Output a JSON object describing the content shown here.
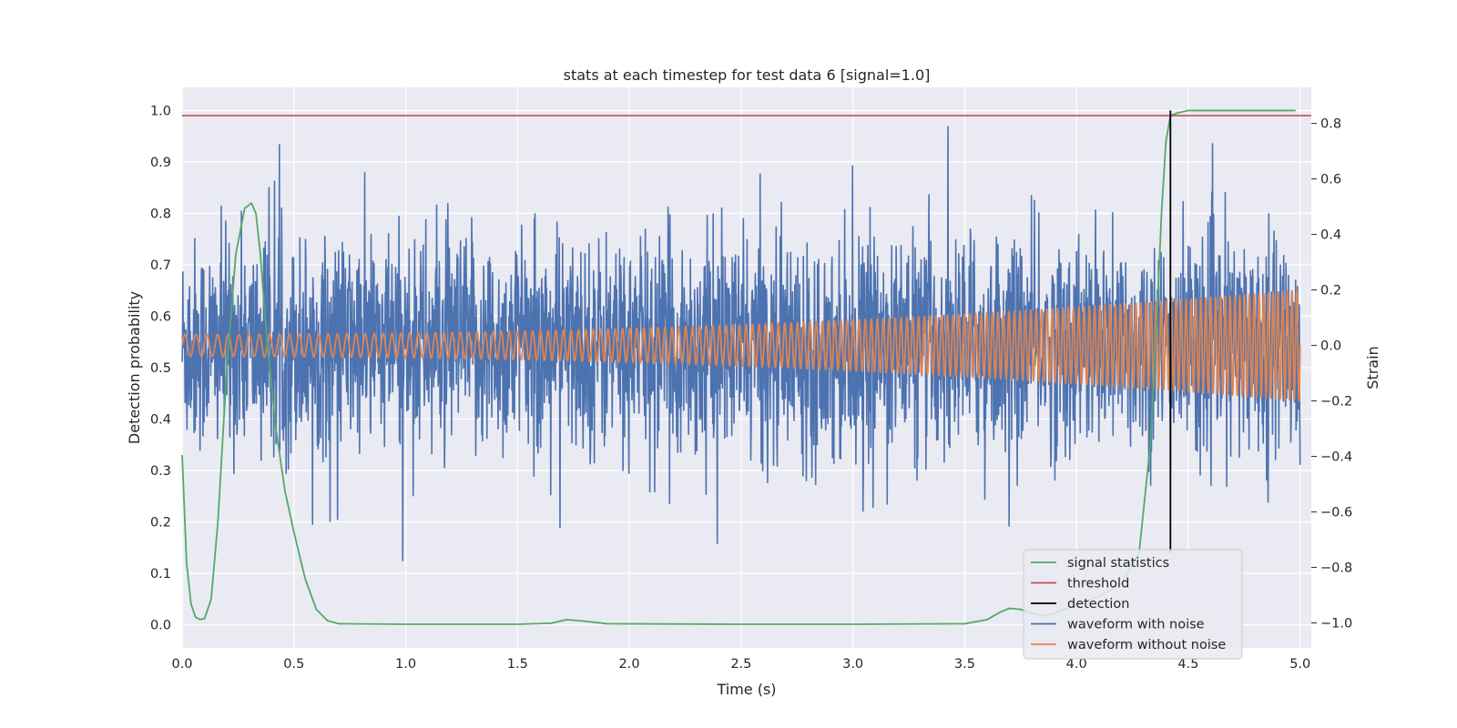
{
  "chart_data": {
    "type": "line",
    "title": "stats at each timestep for test data 6 [signal=1.0]",
    "xlabel": "Time (s)",
    "ylabel": "Detection probability",
    "y2label": "Strain",
    "xlim": [
      0.0,
      5.05
    ],
    "ylim": [
      -0.045,
      1.045
    ],
    "y2lim": [
      -1.09,
      0.93
    ],
    "xticks": [
      0.0,
      0.5,
      1.0,
      1.5,
      2.0,
      2.5,
      3.0,
      3.5,
      4.0,
      4.5,
      5.0
    ],
    "xtick_labels": [
      "0.0",
      "0.5",
      "1.0",
      "1.5",
      "2.0",
      "2.5",
      "3.0",
      "3.5",
      "4.0",
      "4.5",
      "5.0"
    ],
    "yticks": [
      0.0,
      0.1,
      0.2,
      0.3,
      0.4,
      0.5,
      0.6,
      0.7,
      0.8,
      0.9,
      1.0
    ],
    "ytick_labels": [
      "0.0",
      "0.1",
      "0.2",
      "0.3",
      "0.4",
      "0.5",
      "0.6",
      "0.7",
      "0.8",
      "0.9",
      "1.0"
    ],
    "y2ticks": [
      -1.0,
      -0.8,
      -0.6,
      -0.4,
      -0.2,
      0.0,
      0.2,
      0.4,
      0.6,
      0.8
    ],
    "y2tick_labels": [
      "−1.0",
      "−0.8",
      "−0.6",
      "−0.4",
      "−0.2",
      "0.0",
      "0.2",
      "0.4",
      "0.6",
      "0.8"
    ],
    "grid": true,
    "legend_position": "lower-right",
    "series": [
      {
        "name": "signal statistics",
        "axis": "left",
        "color": "#55a868",
        "x": [
          0.0,
          0.02,
          0.04,
          0.06,
          0.08,
          0.1,
          0.13,
          0.16,
          0.2,
          0.24,
          0.28,
          0.31,
          0.33,
          0.35,
          0.38,
          0.42,
          0.46,
          0.5,
          0.55,
          0.6,
          0.65,
          0.7,
          1.0,
          1.5,
          1.65,
          1.72,
          1.8,
          1.9,
          2.5,
          3.0,
          3.5,
          3.6,
          3.66,
          3.7,
          3.75,
          3.8,
          3.85,
          3.9,
          4.0,
          4.1,
          4.2,
          4.28,
          4.33,
          4.36,
          4.38,
          4.4,
          4.42,
          4.45,
          4.5,
          4.98
        ],
        "y": [
          0.33,
          0.12,
          0.04,
          0.015,
          0.01,
          0.012,
          0.05,
          0.2,
          0.5,
          0.72,
          0.81,
          0.82,
          0.8,
          0.72,
          0.55,
          0.38,
          0.26,
          0.18,
          0.09,
          0.03,
          0.008,
          0.002,
          0.001,
          0.001,
          0.003,
          0.01,
          0.007,
          0.002,
          0.001,
          0.001,
          0.002,
          0.01,
          0.025,
          0.032,
          0.03,
          0.022,
          0.018,
          0.022,
          0.04,
          0.055,
          0.08,
          0.14,
          0.35,
          0.6,
          0.8,
          0.94,
          0.99,
          0.995,
          1.0,
          1.0
        ]
      },
      {
        "name": "threshold",
        "axis": "left",
        "color": "#c44e52",
        "x": [
          0.0,
          5.05
        ],
        "y": [
          0.99,
          0.99
        ]
      },
      {
        "name": "detection",
        "axis": "left",
        "color": "#000000",
        "x": [
          4.42,
          4.42
        ],
        "y": [
          0.14,
          1.0
        ]
      },
      {
        "name": "waveform with noise",
        "axis": "right",
        "color": "#4c72b0",
        "x_range": [
          0.0,
          5.0
        ],
        "amplitude_range": [
          -1.0,
          0.84
        ]
      },
      {
        "name": "waveform without noise",
        "axis": "right",
        "color": "#dd8452",
        "x_range": [
          0.0,
          5.0
        ],
        "amplitude_start": 0.04,
        "amplitude_end": 0.2,
        "frequency_start_hz": 20,
        "frequency_end_hz": 48
      }
    ]
  }
}
